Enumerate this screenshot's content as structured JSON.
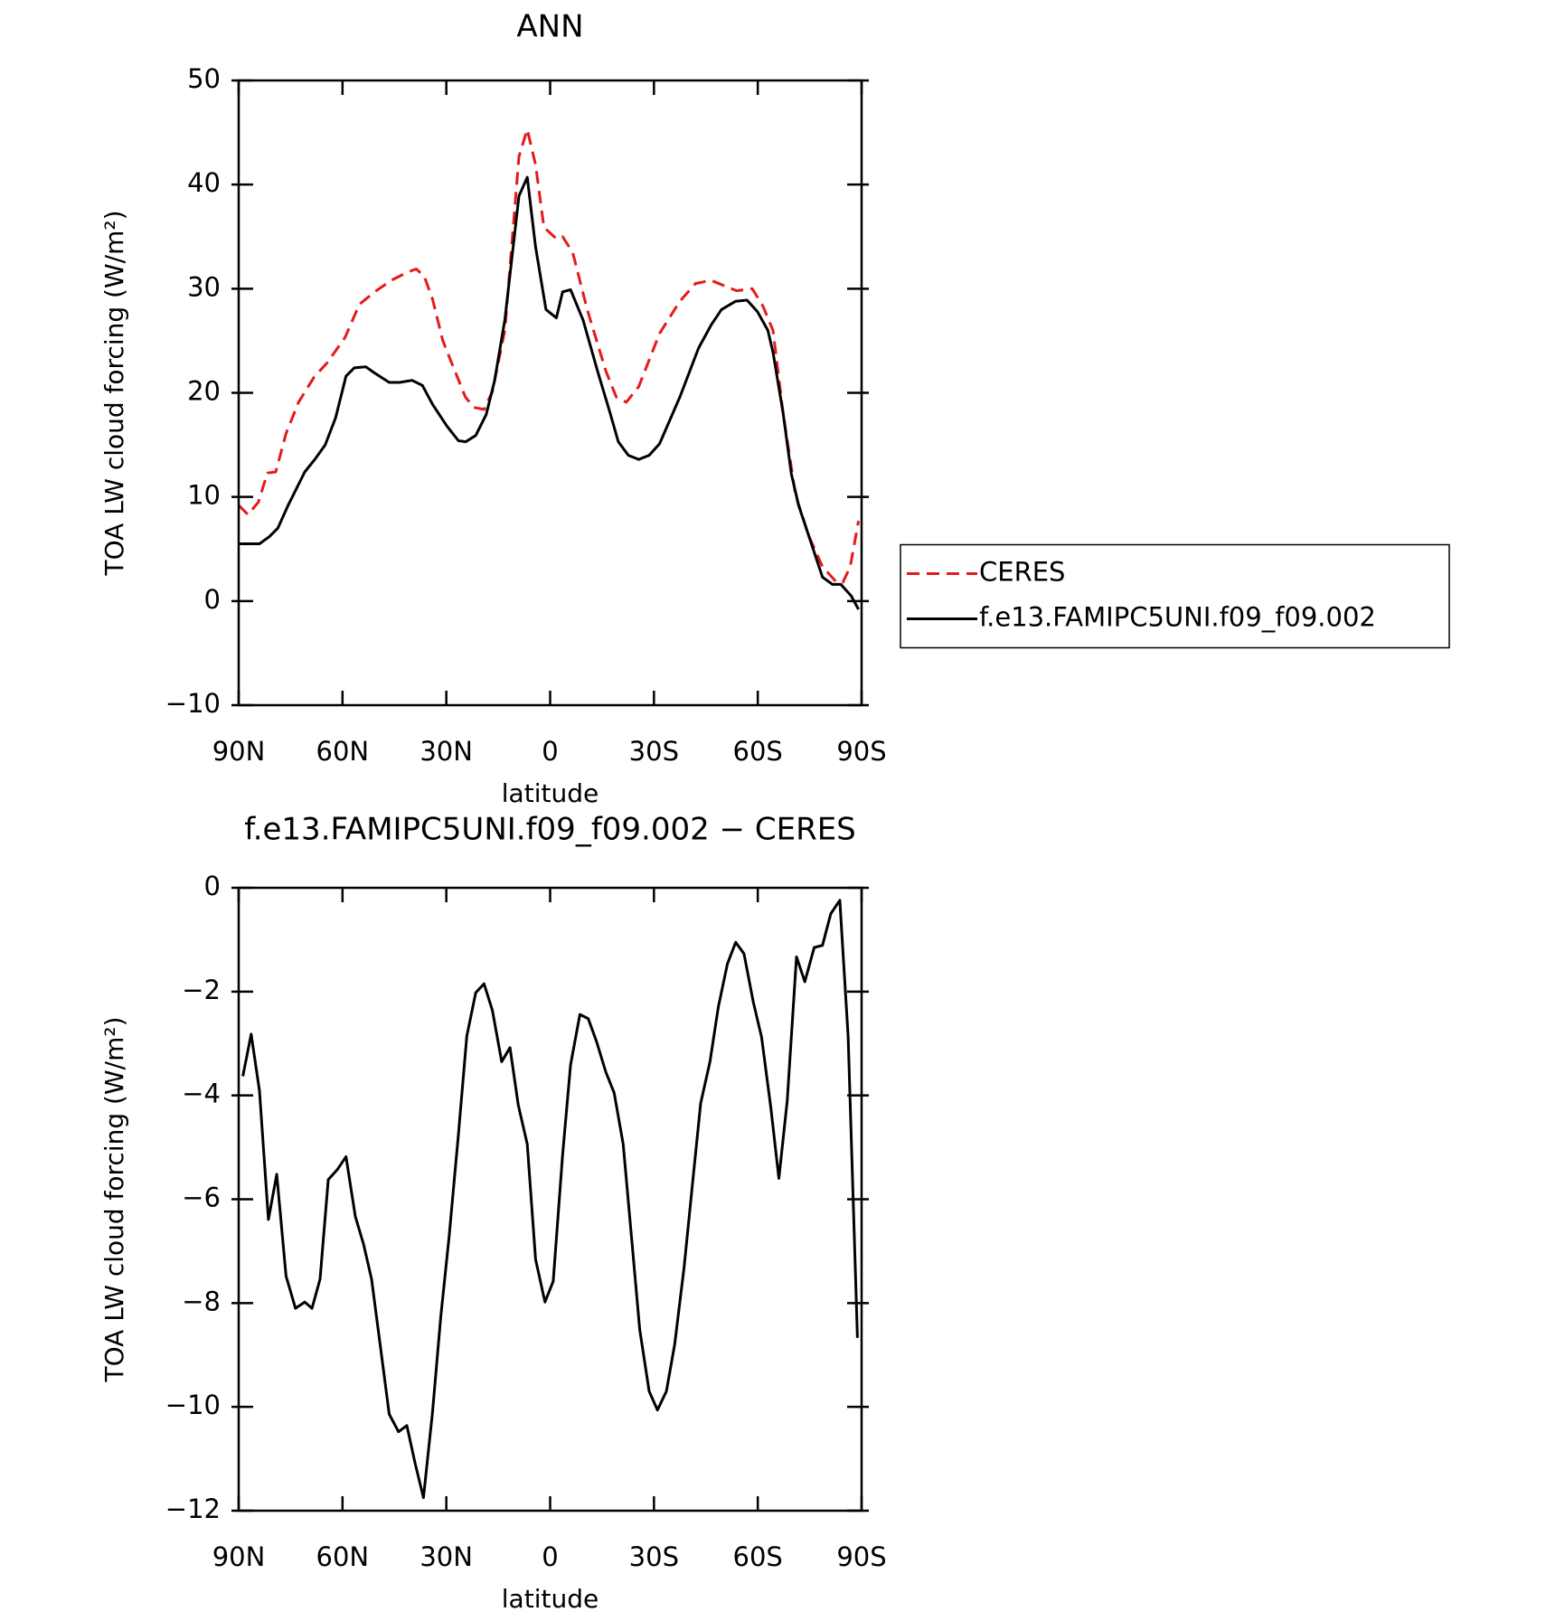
{
  "chart_data": [
    {
      "type": "line",
      "title": "ANN",
      "xlabel": "latitude",
      "ylabel": "TOA LW cloud forcing (W/m²)",
      "xlim": [
        90,
        -90
      ],
      "xticks": [
        {
          "value": 90,
          "label": "90N"
        },
        {
          "value": 60,
          "label": "60N"
        },
        {
          "value": 30,
          "label": "30N"
        },
        0,
        {
          "value": -30,
          "label": "30S"
        },
        {
          "value": -60,
          "label": "60S"
        },
        {
          "value": -90,
          "label": "90S"
        }
      ],
      "ylim": [
        -10,
        50
      ],
      "yticks": [
        -10,
        0,
        10,
        20,
        30,
        40,
        50
      ],
      "legend": "right",
      "series": [
        {
          "name": "CERES",
          "color": "#e41a1c",
          "linestyle": "dashed",
          "x": [
            90,
            87.3,
            84.3,
            81.7,
            79.3,
            76.3,
            72.7,
            68.2,
            64.4,
            59.3,
            55.1,
            50.7,
            45.9,
            41.1,
            38.7,
            36.4,
            34.0,
            31.0,
            27.4,
            24.5,
            22.1,
            19.1,
            16.7,
            13.1,
            9.0,
            6.6,
            4.2,
            1.8,
            -1.8,
            -3.6,
            -6.5,
            -10.7,
            -16.1,
            -19.1,
            -22.0,
            -25.6,
            -31.6,
            -37.5,
            -42.0,
            -46.5,
            -50.9,
            -53.9,
            -58.4,
            -61.4,
            -64.4,
            -67.3,
            -70.9,
            -74.8,
            -78.7,
            -82.8,
            -84.6,
            -86.7,
            -89.1
          ],
          "values": [
            9.2,
            8.3,
            9.5,
            12.3,
            12.4,
            16.1,
            19.1,
            21.5,
            22.9,
            25.3,
            28.5,
            29.7,
            30.8,
            31.6,
            31.9,
            31.2,
            29.0,
            25.0,
            22.0,
            19.6,
            18.6,
            18.4,
            20.1,
            26.0,
            42.7,
            45.3,
            41.9,
            35.9,
            34.8,
            35.0,
            33.5,
            28.0,
            22.1,
            19.6,
            19.1,
            20.6,
            25.7,
            28.8,
            30.5,
            30.8,
            30.2,
            29.8,
            30.0,
            28.4,
            26.0,
            18.1,
            10.2,
            6.2,
            3.3,
            1.8,
            1.8,
            3.3,
            7.7
          ]
        },
        {
          "name": "f.e13.FAMIPC5UNI.f09_f09.002",
          "color": "#000000",
          "linestyle": "solid",
          "x": [
            90,
            84.0,
            81.1,
            78.7,
            75.7,
            70.9,
            68.0,
            65.0,
            62.0,
            59.0,
            56.6,
            53.3,
            50.7,
            46.5,
            43.5,
            39.9,
            36.9,
            34.0,
            29.8,
            26.5,
            24.4,
            21.5,
            18.5,
            16.1,
            13.1,
            9.0,
            6.6,
            4.2,
            1.2,
            -1.8,
            -3.6,
            -5.9,
            -9.5,
            -13.7,
            -17.3,
            -19.7,
            -22.6,
            -25.6,
            -28.6,
            -31.6,
            -37.5,
            -42.9,
            -46.5,
            -49.5,
            -53.6,
            -56.9,
            -59.9,
            -62.9,
            -64.4,
            -67.3,
            -69.7,
            -71.8,
            -74.8,
            -78.7,
            -81.6,
            -84.0,
            -87.0,
            -89.1
          ],
          "values": [
            5.5,
            5.5,
            6.2,
            7.0,
            9.2,
            12.4,
            13.6,
            15.0,
            17.6,
            21.6,
            22.4,
            22.5,
            21.9,
            21.0,
            21.0,
            21.2,
            20.7,
            18.9,
            16.8,
            15.4,
            15.3,
            15.9,
            17.9,
            21.1,
            27.0,
            38.9,
            40.7,
            34.0,
            28.0,
            27.2,
            29.7,
            29.9,
            27.0,
            22.1,
            18.1,
            15.3,
            14.0,
            13.6,
            14.0,
            15.1,
            19.6,
            24.3,
            26.5,
            28.0,
            28.8,
            28.9,
            27.8,
            26.0,
            23.9,
            18.1,
            12.2,
            9.2,
            6.2,
            2.3,
            1.6,
            1.6,
            0.5,
            -0.8
          ]
        }
      ]
    },
    {
      "type": "line",
      "title": "f.e13.FAMIPC5UNI.f09_f09.002 − CERES",
      "xlabel": "latitude",
      "ylabel": "TOA LW cloud forcing (W/m²)",
      "xlim": [
        90,
        -90
      ],
      "xticks": [
        {
          "value": 90,
          "label": "90N"
        },
        {
          "value": 60,
          "label": "60N"
        },
        {
          "value": 30,
          "label": "30N"
        },
        0,
        {
          "value": -30,
          "label": "30S"
        },
        {
          "value": -60,
          "label": "60S"
        },
        {
          "value": -90,
          "label": "90S"
        }
      ],
      "ylim": [
        -12,
        0
      ],
      "yticks": [
        -12,
        -10,
        -8,
        -6,
        -4,
        -2,
        0
      ],
      "color": "#000000",
      "x": [
        88.8,
        86.4,
        84.0,
        81.4,
        79.0,
        76.3,
        73.6,
        70.9,
        68.8,
        66.5,
        64.1,
        61.4,
        59.0,
        56.3,
        53.9,
        51.6,
        48.9,
        46.5,
        43.8,
        41.4,
        39.0,
        36.6,
        34.0,
        31.6,
        29.2,
        26.5,
        24.1,
        21.5,
        19.1,
        16.7,
        14.0,
        11.6,
        9.2,
        6.6,
        4.2,
        1.5,
        -0.9,
        -3.6,
        -5.9,
        -8.6,
        -11.0,
        -13.4,
        -16.1,
        -18.5,
        -21.1,
        -23.5,
        -25.9,
        -28.6,
        -31.0,
        -33.6,
        -36.0,
        -38.7,
        -41.1,
        -43.5,
        -46.2,
        -48.6,
        -51.2,
        -53.6,
        -56.0,
        -58.7,
        -61.1,
        -63.8,
        -66.1,
        -68.5,
        -71.2,
        -73.6,
        -76.3,
        -78.7,
        -81.1,
        -83.7,
        -86.1,
        -88.8
      ],
      "values": [
        -3.63,
        -2.82,
        -3.91,
        -6.39,
        -5.52,
        -7.48,
        -8.1,
        -7.98,
        -8.1,
        -7.54,
        -5.62,
        -5.42,
        -5.18,
        -6.33,
        -6.87,
        -7.54,
        -8.91,
        -10.14,
        -10.48,
        -10.36,
        -11.09,
        -11.75,
        -10.1,
        -8.27,
        -6.73,
        -4.74,
        -2.86,
        -2.02,
        -1.85,
        -2.36,
        -3.35,
        -3.08,
        -4.19,
        -4.94,
        -7.16,
        -7.98,
        -7.58,
        -5.14,
        -3.41,
        -2.44,
        -2.52,
        -2.96,
        -3.55,
        -3.95,
        -4.94,
        -6.73,
        -8.51,
        -9.7,
        -10.06,
        -9.7,
        -8.79,
        -7.32,
        -5.73,
        -4.15,
        -3.35,
        -2.3,
        -1.47,
        -1.05,
        -1.27,
        -2.2,
        -2.88,
        -4.25,
        -5.6,
        -4.11,
        -1.33,
        -1.81,
        -1.15,
        -1.11,
        -0.5,
        -0.24,
        -2.86,
        -8.67
      ]
    }
  ]
}
